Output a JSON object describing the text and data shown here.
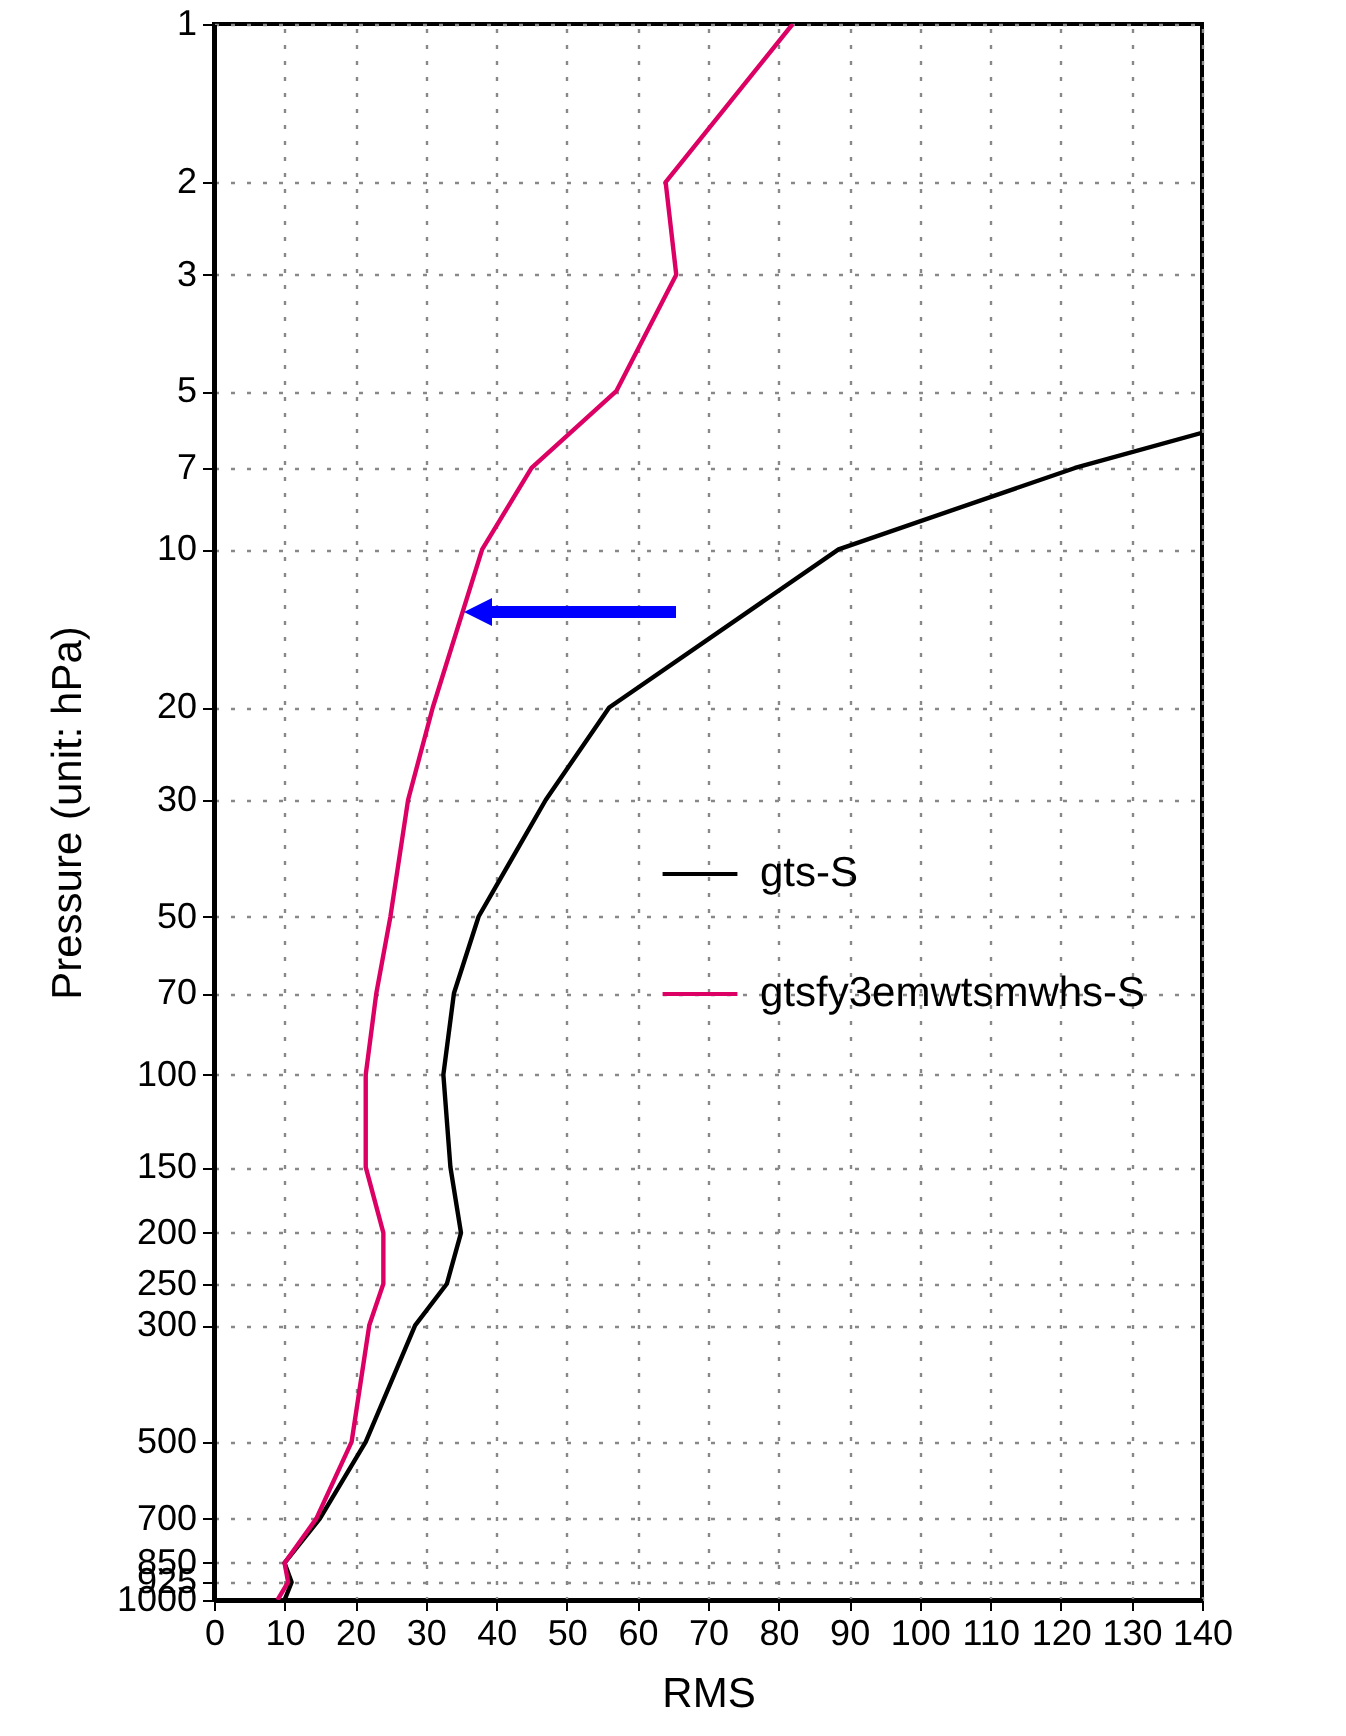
{
  "chart_data": {
    "type": "line",
    "xlabel": "RMS",
    "ylabel": "Pressure (unit: hPa)",
    "xlim": [
      0,
      140
    ],
    "xticks": [
      0,
      10,
      20,
      30,
      40,
      50,
      60,
      70,
      80,
      90,
      100,
      110,
      120,
      130,
      140
    ],
    "ylim": [
      1000,
      1
    ],
    "yticks": [
      1,
      2,
      3,
      5,
      7,
      10,
      20,
      30,
      50,
      70,
      100,
      150,
      200,
      250,
      300,
      500,
      700,
      850,
      925,
      1000
    ],
    "log": "y",
    "grid": true,
    "legend": "right",
    "line_style": "solid",
    "marker": "none",
    "series": [
      {
        "name": "gts-S",
        "color": "#000000",
        "x": [
          10,
          11,
          10,
          15,
          21.5,
          28.5,
          33,
          35,
          33.5,
          32.5,
          34,
          37.5,
          47,
          56,
          88.5,
          122,
          140
        ],
        "values": [
          1000,
          925,
          850,
          700,
          500,
          300,
          250,
          200,
          150,
          100,
          70,
          50,
          30,
          20,
          10,
          7,
          6
        ]
      },
      {
        "name": "gtsfy3emwtsmwhs-S",
        "color": "#dc0064",
        "x": [
          9,
          10.5,
          10,
          14.5,
          19.5,
          22,
          24,
          24,
          21.5,
          21.5,
          23,
          25,
          27.5,
          31,
          38,
          45,
          57,
          65.5,
          64,
          82
        ],
        "values": [
          1000,
          925,
          850,
          700,
          500,
          300,
          250,
          200,
          150,
          100,
          70,
          50,
          30,
          20,
          10,
          7,
          5,
          3,
          2,
          1
        ]
      }
    ]
  }
}
